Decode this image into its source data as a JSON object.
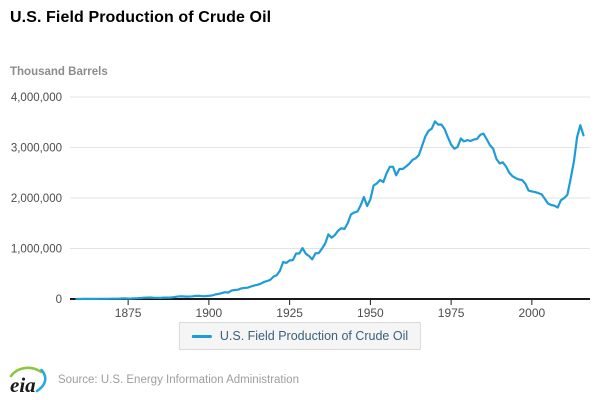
{
  "chart": {
    "title": "U.S. Field Production of Crude Oil",
    "unit_label": "Thousand Barrels",
    "legend_label": "U.S. Field Production of Crude Oil"
  },
  "footer": {
    "source": "Source: U.S. Energy Information Administration",
    "logo_text": "eia"
  },
  "colors": {
    "line": "#1e9cd7",
    "grid": "#e3e3e3",
    "axis": "#1a1a1a",
    "tick_label": "#4d4d4d",
    "unit_label": "#8c8c8c",
    "legend_text": "#3a617b",
    "legend_bg": "#f5f5f5",
    "legend_border": "#d9d9d9",
    "source_text": "#9e9e9e",
    "logo_green": "#8dc63f",
    "logo_blue": "#2aa9e0",
    "logo_text": "#1a1a1a"
  },
  "chart_data": {
    "type": "line",
    "title": "U.S. Field Production of Crude Oil",
    "xlabel": "",
    "ylabel": "Thousand Barrels",
    "series_name": "U.S. Field Production of Crude Oil",
    "start_year": 1859,
    "end_year": 2016,
    "xticks": [
      1875,
      1900,
      1925,
      1950,
      1975,
      2000
    ],
    "yticks": [
      0,
      1000000,
      2000000,
      3000000,
      4000000
    ],
    "ytick_labels": [
      "0",
      "1,000,000",
      "2,000,000",
      "3,000,000",
      "4,000,000"
    ],
    "xlim": [
      1857,
      2018
    ],
    "ylim": [
      0,
      4000000
    ],
    "grid": true,
    "legend_position": "bottom",
    "values": [
      2,
      500,
      2114,
      3057,
      2611,
      2116,
      2498,
      3598,
      3347,
      3646,
      4215,
      5261,
      5205,
      6293,
      9894,
      10927,
      8787,
      9133,
      13350,
      15397,
      19914,
      26286,
      27661,
      30350,
      23450,
      24218,
      21859,
      28065,
      28283,
      27612,
      35164,
      45824,
      54293,
      50515,
      48431,
      49344,
      52892,
      60960,
      60476,
      55364,
      57071,
      63621,
      69389,
      88767,
      100461,
      117081,
      134717,
      126494,
      166095,
      178527,
      183171,
      209557,
      220449,
      222935,
      248446,
      265763,
      281104,
      300767,
      335316,
      355928,
      378367,
      442929,
      472183,
      557531,
      732407,
      713940,
      763743,
      770874,
      901129,
      901474,
      1007323,
      898011,
      851081,
      785159,
      905656,
      908065,
      996596,
      1099687,
      1279160,
      1214355,
      1264962,
      1353214,
      1402228,
      1386645,
      1505613,
      1677904,
      1713655,
      1733590,
      1856987,
      2020185,
      1841940,
      1973574,
      2247711,
      2289836,
      2357082,
      2314988,
      2484428,
      2617283,
      2616901,
      2448987,
      2574590,
      2574933,
      2621758,
      2676189,
      2752723,
      2786822,
      2848514,
      3027763,
      3215742,
      3329042,
      3371751,
      3517450,
      3453914,
      3455368,
      3360903,
      3202585,
      3056779,
      2976180,
      3009265,
      3178216,
      3121310,
      3146365,
      3128624,
      3156715,
      3170999,
      3249696,
      3274553,
      3168252,
      3047378,
      2979123,
      2778773,
      2684687,
      2707039,
      2624632,
      2499033,
      2431476,
      2394268,
      2366017,
      2354831,
      2281919,
      2146732,
      2130707,
      2117511,
      2097124,
      2073453,
      1983302,
      1890106,
      1862259,
      1848450,
      1811817,
      1956596,
      1998137,
      2065394,
      2377220,
      2720782,
      3203312,
      3442225,
      3241031
    ]
  }
}
